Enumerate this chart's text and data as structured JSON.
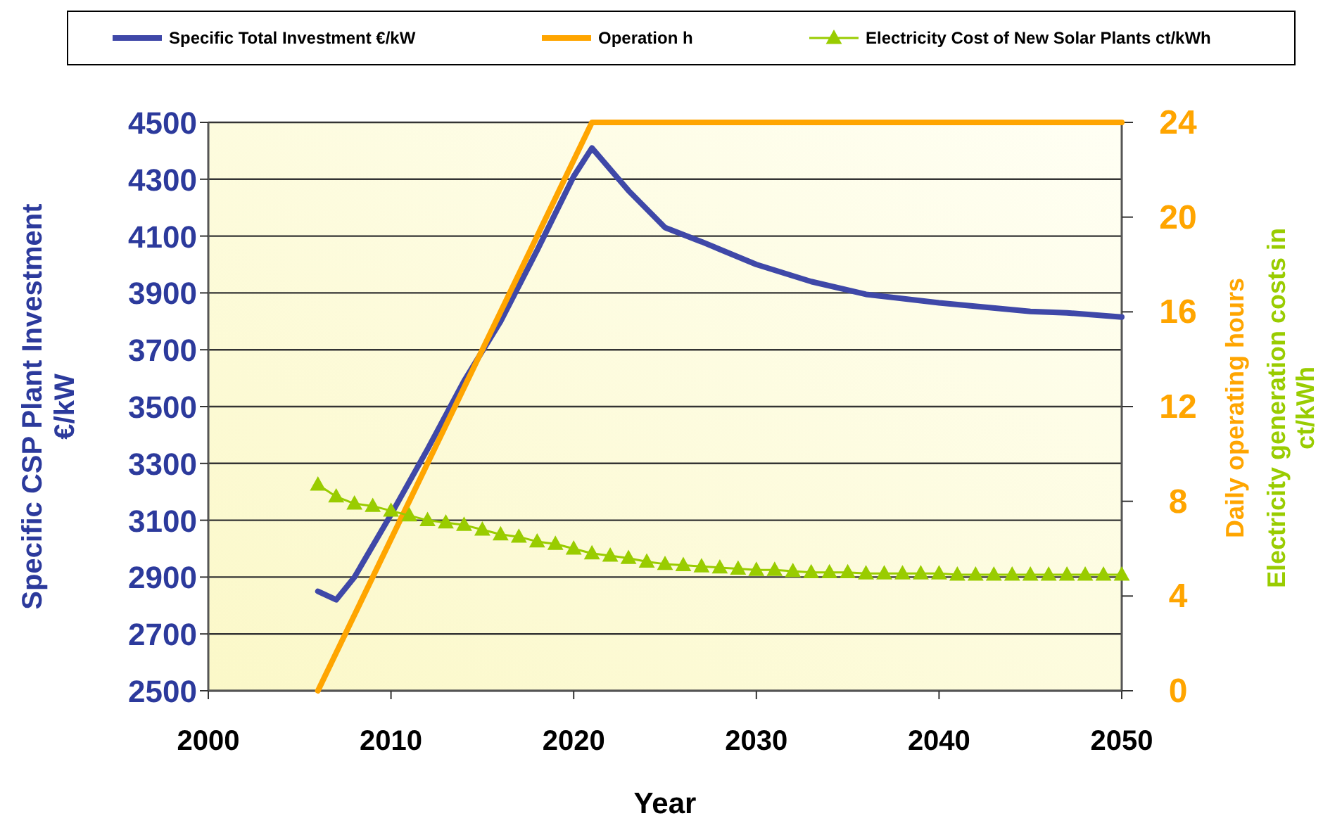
{
  "chart_data": {
    "type": "line",
    "xlabel": "Year",
    "ylabel": "Specific CSP Plant Investment\n€/kW",
    "y2label": "Daily operating hours",
    "annotations": [
      "Electricity generation costs in\nct/kWh"
    ],
    "xlim": [
      2000,
      2050
    ],
    "xticks": [
      2000,
      2010,
      2020,
      2030,
      2040,
      2050
    ],
    "ylim": [
      2500,
      4500
    ],
    "yticks": [
      2500,
      2700,
      2900,
      3100,
      3300,
      3500,
      3700,
      3900,
      4100,
      4300,
      4500
    ],
    "y2lim": [
      0,
      24
    ],
    "y2ticks": [
      0,
      4,
      8,
      12,
      16,
      20,
      24
    ],
    "grid": "y",
    "legend": "top",
    "series": [
      {
        "name": "Specific Total Investment €/kW",
        "color": "#3f48a8",
        "marker": "none",
        "x": [
          2006,
          2007,
          2008,
          2010,
          2012,
          2014,
          2016,
          2018,
          2020,
          2021,
          2023,
          2025,
          2027,
          2030,
          2033,
          2036,
          2040,
          2045,
          2047,
          2050
        ],
        "values": [
          2850,
          2820,
          2900,
          3120,
          3350,
          3590,
          3800,
          4050,
          4310,
          4410,
          4260,
          4130,
          4080,
          4000,
          3940,
          3895,
          3865,
          3835,
          3830,
          3815
        ]
      },
      {
        "name": "Operation h",
        "color": "#ffa500",
        "marker": "none",
        "axis": "y2",
        "x": [
          2006,
          2021,
          2050
        ],
        "values": [
          0,
          24,
          24
        ]
      },
      {
        "name": "Electricity Cost of New Solar Plants ct/kWh",
        "color": "#99cc00",
        "marker": "triangle",
        "axis": "y2",
        "x": [
          2006,
          2007,
          2008,
          2009,
          2010,
          2011,
          2012,
          2013,
          2014,
          2015,
          2016,
          2017,
          2018,
          2019,
          2020,
          2021,
          2022,
          2023,
          2024,
          2025,
          2026,
          2027,
          2028,
          2029,
          2030,
          2031,
          2032,
          2033,
          2034,
          2035,
          2036,
          2037,
          2038,
          2039,
          2040,
          2041,
          2042,
          2043,
          2044,
          2045,
          2046,
          2047,
          2048,
          2049,
          2050
        ],
        "values": [
          8.7,
          8.2,
          7.9,
          7.8,
          7.6,
          7.4,
          7.2,
          7.1,
          7.0,
          6.8,
          6.6,
          6.5,
          6.3,
          6.2,
          6.0,
          5.8,
          5.7,
          5.6,
          5.45,
          5.35,
          5.3,
          5.25,
          5.2,
          5.15,
          5.1,
          5.1,
          5.05,
          5.0,
          5.0,
          5.0,
          4.95,
          4.95,
          4.95,
          4.95,
          4.95,
          4.9,
          4.9,
          4.9,
          4.9,
          4.9,
          4.9,
          4.9,
          4.9,
          4.9,
          4.9
        ]
      }
    ]
  }
}
